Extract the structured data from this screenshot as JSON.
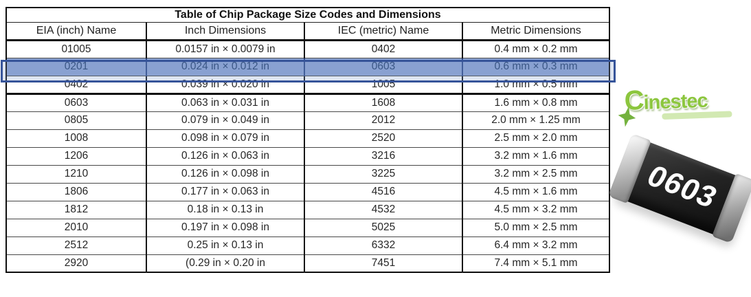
{
  "title": "Table of Chip Package Size Codes and Dimensions",
  "table": {
    "columns": [
      "EIA (inch) Name",
      "Inch Dimensions",
      "IEC (metric) Name",
      "Metric Dimensions"
    ],
    "rows": [
      [
        "01005",
        "0.0157 in × 0.0079 in",
        "0402",
        "0.4 mm × 0.2 mm"
      ],
      [
        "0201",
        "0.024 in × 0.012 in",
        "0603",
        "0.6 mm × 0.3 mm"
      ],
      [
        "0402",
        "0.039 in × 0.020 in",
        "1005",
        "1.0 mm × 0.5 mm"
      ],
      [
        "0603",
        "0.063 in × 0.031 in",
        "1608",
        "1.6 mm × 0.8 mm"
      ],
      [
        "0805",
        "0.079 in × 0.049 in",
        "2012",
        "2.0 mm × 1.25 mm"
      ],
      [
        "1008",
        "0.098 in × 0.079 in",
        "2520",
        "2.5 mm × 2.0 mm"
      ],
      [
        "1206",
        "0.126 in × 0.063 in",
        "3216",
        "3.2 mm × 1.6 mm"
      ],
      [
        "1210",
        "0.126 in × 0.098 in",
        "3225",
        "3.2 mm × 2.5 mm"
      ],
      [
        "1806",
        "0.177 in × 0.063 in",
        "4516",
        "4.5 mm × 1.6 mm"
      ],
      [
        "1812",
        "0.18 in × 0.13 in",
        "4532",
        "4.5 mm × 3.2 mm"
      ],
      [
        "2010",
        "0.197 in × 0.098 in",
        "5025",
        "5.0 mm × 2.5 mm"
      ],
      [
        "2512",
        "0.25 in × 0.13 in",
        "6332",
        "6.4 mm × 3.2 mm"
      ],
      [
        "2920",
        "(0.29 in × 0.20 in",
        "7451",
        "7.4 mm × 5.1 mm"
      ]
    ],
    "highlighted_row_index": 1,
    "thick_border_after_row_index": 2,
    "highlight_colors": {
      "fill": "#8EA5D4",
      "border": "#36549A",
      "text": "#24406F"
    }
  },
  "logo": {
    "text": "Cinestec",
    "color": "#8CC63E"
  },
  "chip": {
    "label": "0603",
    "body_color": "#242424",
    "cap_color": "#c6c6c6",
    "label_color": "#ffffff"
  }
}
